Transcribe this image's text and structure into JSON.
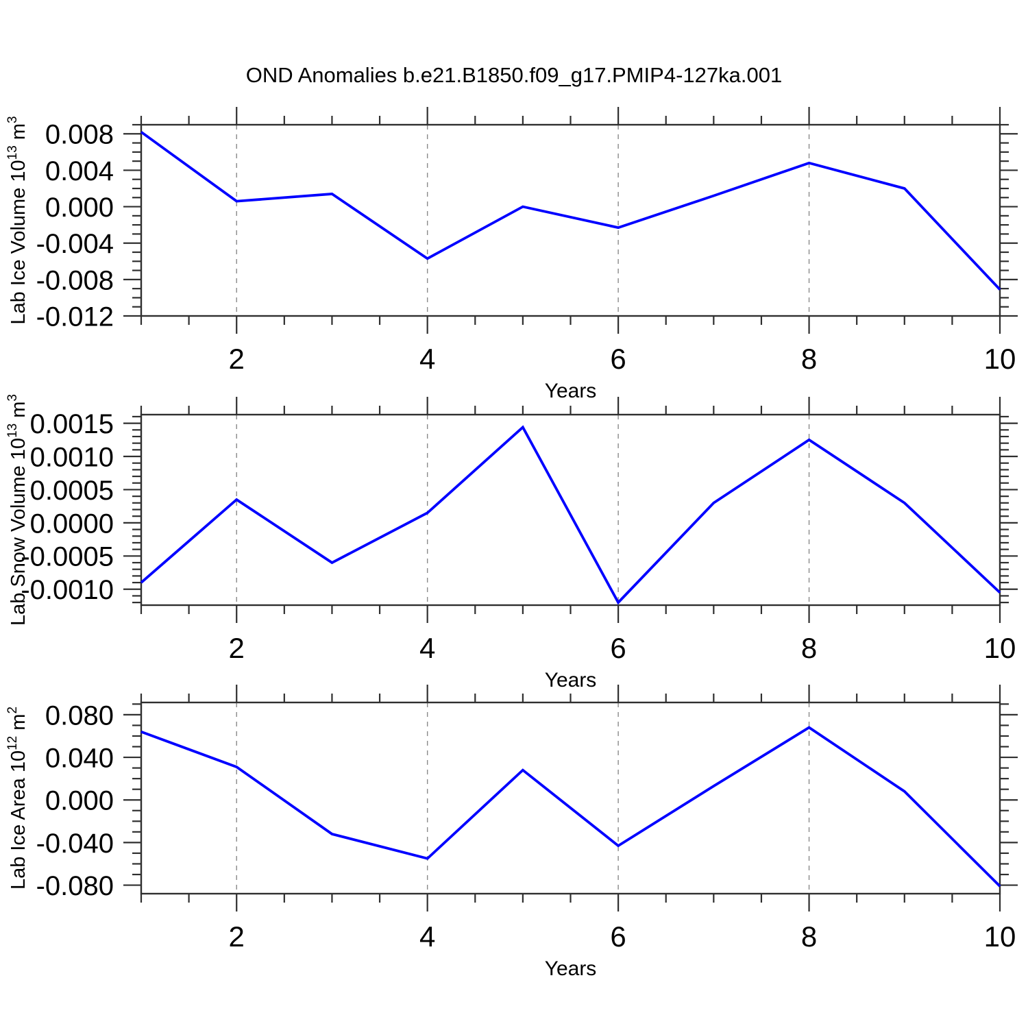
{
  "title": "OND Anomalies b.e21.B1850.f09_g17.PMIP4-127ka.001",
  "colors": {
    "line": "#0000ff",
    "grid": "#8a8a8a",
    "axis": "#2f2f2f",
    "text": "#000000",
    "background": "#ffffff"
  },
  "chart_data": [
    {
      "type": "line",
      "ylabel_parts": [
        {
          "t": "Lab Ice Volume 10"
        },
        {
          "t": "13",
          "sup": true
        },
        {
          "t": " m"
        },
        {
          "t": "3",
          "sup": true
        }
      ],
      "xlabel": "Years",
      "x": [
        1,
        2,
        3,
        4,
        5,
        6,
        7,
        8,
        9,
        10
      ],
      "values": [
        0.0082,
        0.0006,
        0.0014,
        -0.0057,
        0.0,
        -0.0023,
        0.0012,
        0.0048,
        0.002,
        -0.0091
      ],
      "ylim": [
        -0.012,
        0.009
      ],
      "xlim": [
        1,
        10
      ],
      "yticks": [
        0.008,
        0.004,
        0.0,
        -0.004,
        -0.008,
        -0.012
      ],
      "ytick_labels": [
        "0.008",
        "0.004",
        "0.000",
        "-0.004",
        "-0.008",
        "-0.012"
      ],
      "ytick_minor_step": 0.001,
      "xticks": [
        2,
        4,
        6,
        8,
        10
      ],
      "xtick_labels": [
        "2",
        "4",
        "6",
        "8",
        "10"
      ],
      "xtick_minor_step": 0.5,
      "grid_x": [
        2,
        4,
        6,
        8
      ],
      "grid_on": true,
      "legend": "none"
    },
    {
      "type": "line",
      "ylabel_parts": [
        {
          "t": "Lab Snow Volume 10"
        },
        {
          "t": "13",
          "sup": true
        },
        {
          "t": " m"
        },
        {
          "t": "3",
          "sup": true
        }
      ],
      "xlabel": "Years",
      "x": [
        1,
        2,
        3,
        4,
        5,
        6,
        7,
        8,
        9,
        10
      ],
      "values": [
        -0.0009,
        0.00035,
        -0.0006,
        0.00015,
        0.00144,
        -0.0012,
        0.0003,
        0.00125,
        0.0003,
        -0.00105
      ],
      "ylim": [
        -0.00124,
        0.00163
      ],
      "xlim": [
        1,
        10
      ],
      "yticks": [
        0.0015,
        0.001,
        0.0005,
        0.0,
        -0.0005,
        -0.001
      ],
      "ytick_labels": [
        "0.0015",
        "0.0010",
        "0.0005",
        "0.0000",
        "-0.0005",
        "-0.0010"
      ],
      "ytick_minor_step": 0.0001,
      "xticks": [
        2,
        4,
        6,
        8,
        10
      ],
      "xtick_labels": [
        "2",
        "4",
        "6",
        "8",
        "10"
      ],
      "xtick_minor_step": 0.5,
      "grid_x": [
        2,
        4,
        6,
        8
      ],
      "grid_on": true,
      "legend": "none"
    },
    {
      "type": "line",
      "ylabel_parts": [
        {
          "t": "Lab Ice Area 10"
        },
        {
          "t": "12",
          "sup": true
        },
        {
          "t": " m"
        },
        {
          "t": "2",
          "sup": true
        }
      ],
      "xlabel": "Years",
      "x": [
        1,
        2,
        3,
        4,
        5,
        6,
        7,
        8,
        9,
        10
      ],
      "values": [
        0.064,
        0.031,
        -0.032,
        -0.055,
        0.028,
        -0.043,
        0.013,
        0.068,
        0.008,
        -0.081
      ],
      "ylim": [
        -0.088,
        0.0915
      ],
      "xlim": [
        1,
        10
      ],
      "yticks": [
        0.08,
        0.04,
        0.0,
        -0.04,
        -0.08
      ],
      "ytick_labels": [
        "0.080",
        "0.040",
        "0.000",
        "-0.040",
        "-0.080"
      ],
      "ytick_minor_step": 0.01,
      "xticks": [
        2,
        4,
        6,
        8,
        10
      ],
      "xtick_labels": [
        "2",
        "4",
        "6",
        "8",
        "10"
      ],
      "xtick_minor_step": 0.5,
      "grid_x": [
        2,
        4,
        6,
        8
      ],
      "grid_on": true,
      "legend": "none"
    }
  ]
}
